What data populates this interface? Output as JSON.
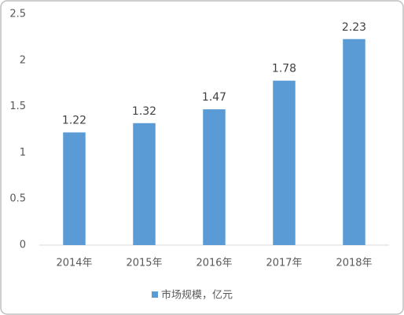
{
  "chart_data": {
    "type": "bar",
    "categories": [
      "2014年",
      "2015年",
      "2016年",
      "2017年",
      "2018年"
    ],
    "series": [
      {
        "name": "市场规模，亿元",
        "color": "#5b9bd5",
        "values": [
          1.22,
          1.32,
          1.47,
          1.78,
          2.23
        ]
      }
    ],
    "ylim": [
      0,
      2.5
    ],
    "yticks": [
      0,
      0.5,
      1,
      1.5,
      2,
      2.5
    ],
    "grid": false,
    "legend": "bottom"
  }
}
